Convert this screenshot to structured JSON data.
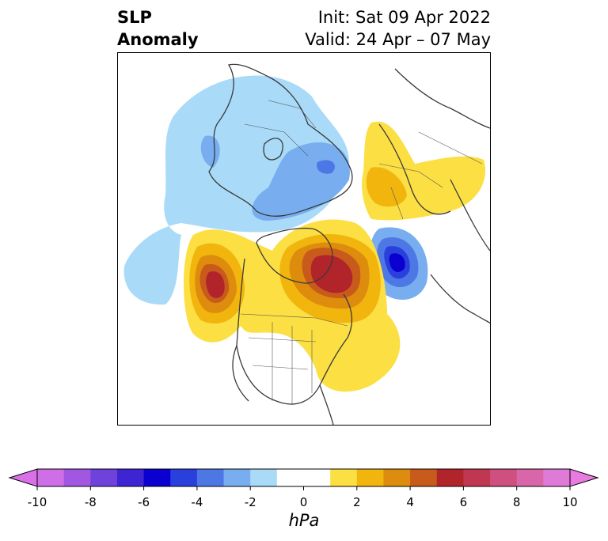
{
  "title": {
    "left_line1": "SLP",
    "left_line2": "Anomaly",
    "right_line1": "Init: Sat 09 Apr 2022",
    "right_line2": "Valid: 24 Apr – 07 May"
  },
  "colorbar": {
    "unit": "hPa",
    "ticks": [
      "-10",
      "-8",
      "-6",
      "-4",
      "-2",
      "0",
      "2",
      "4",
      "6",
      "8",
      "10"
    ],
    "bins": [
      {
        "from": -10,
        "to": -9,
        "color": "#cf6fe8"
      },
      {
        "from": -9,
        "to": -8,
        "color": "#a257e3"
      },
      {
        "from": -8,
        "to": -7,
        "color": "#7042dc"
      },
      {
        "from": -7,
        "to": -6,
        "color": "#3e24d3"
      },
      {
        "from": -6,
        "to": -5,
        "color": "#0a00d0"
      },
      {
        "from": -5,
        "to": -4,
        "color": "#2a40dc"
      },
      {
        "from": -4,
        "to": -3,
        "color": "#4e77e6"
      },
      {
        "from": -3,
        "to": -2,
        "color": "#78aef0"
      },
      {
        "from": -2,
        "to": -1,
        "color": "#a9daf8"
      },
      {
        "from": -1,
        "to": 1,
        "color": "#ffffff"
      },
      {
        "from": 1,
        "to": 2,
        "color": "#fbdf43"
      },
      {
        "from": 2,
        "to": 3,
        "color": "#f1b50e"
      },
      {
        "from": 3,
        "to": 4,
        "color": "#dd8c0d"
      },
      {
        "from": 4,
        "to": 5,
        "color": "#c85a1b"
      },
      {
        "from": 5,
        "to": 6,
        "color": "#b1242a"
      },
      {
        "from": 6,
        "to": 7,
        "color": "#c13752"
      },
      {
        "from": 7,
        "to": 8,
        "color": "#cf4f7e"
      },
      {
        "from": 8,
        "to": 9,
        "color": "#d966a9"
      },
      {
        "from": 9,
        "to": 10,
        "color": "#e07ad7"
      }
    ],
    "extend_low_color": "#d970e8",
    "extend_high_color": "#e87ae0"
  }
}
